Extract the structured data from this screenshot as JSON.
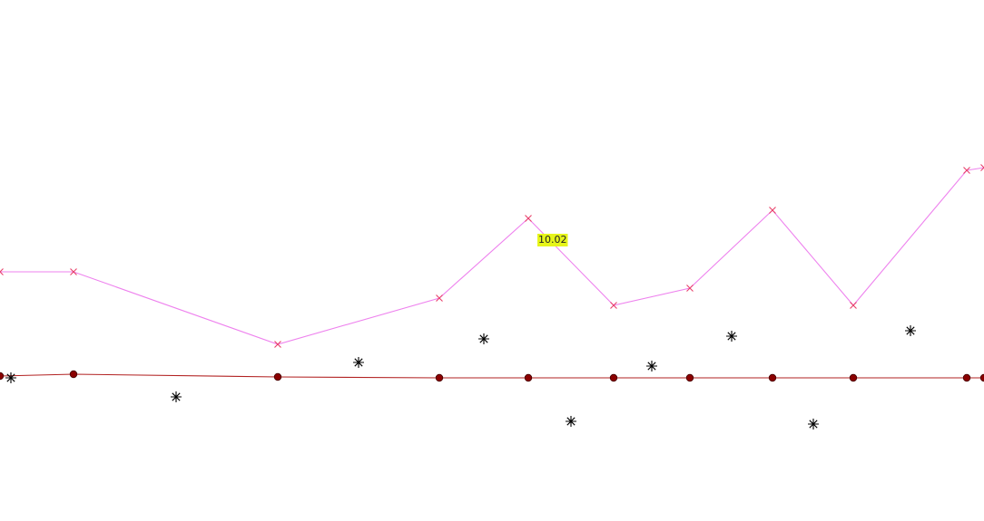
{
  "chart_data": {
    "type": "line",
    "xlim": [
      0,
      1084
    ],
    "ylim": [
      0,
      17.25
    ],
    "series": [
      {
        "color": "#ee82ee",
        "marker": "x",
        "marker_color": "#e8406a",
        "line": true,
        "x": [
          0,
          81,
          306,
          484,
          582,
          676,
          760,
          851,
          940,
          1065,
          1084
        ],
        "values": [
          8.25,
          8.25,
          5.85,
          7.38,
          10.02,
          7.14,
          7.71,
          10.29,
          7.14,
          11.61,
          11.7
        ],
        "labeled": [
          4
        ]
      },
      {
        "color": "#b22222",
        "marker": "circle",
        "marker_color": "#8b0000",
        "line": true,
        "x": [
          0,
          81,
          306,
          484,
          582,
          676,
          760,
          851,
          940,
          1065,
          1084
        ],
        "values": [
          4.8,
          4.86,
          4.77,
          4.74,
          4.74,
          4.74,
          4.74,
          4.74,
          4.74,
          4.74,
          4.74
        ]
      },
      {
        "color": "#000000",
        "marker": "asterisk",
        "marker_color": "#000000",
        "line": false,
        "x": [
          12,
          194,
          395,
          533,
          629,
          718,
          806,
          896,
          1003
        ],
        "values": [
          4.74,
          4.11,
          5.25,
          6.03,
          3.3,
          5.13,
          6.12,
          3.21,
          6.3
        ]
      }
    ]
  }
}
